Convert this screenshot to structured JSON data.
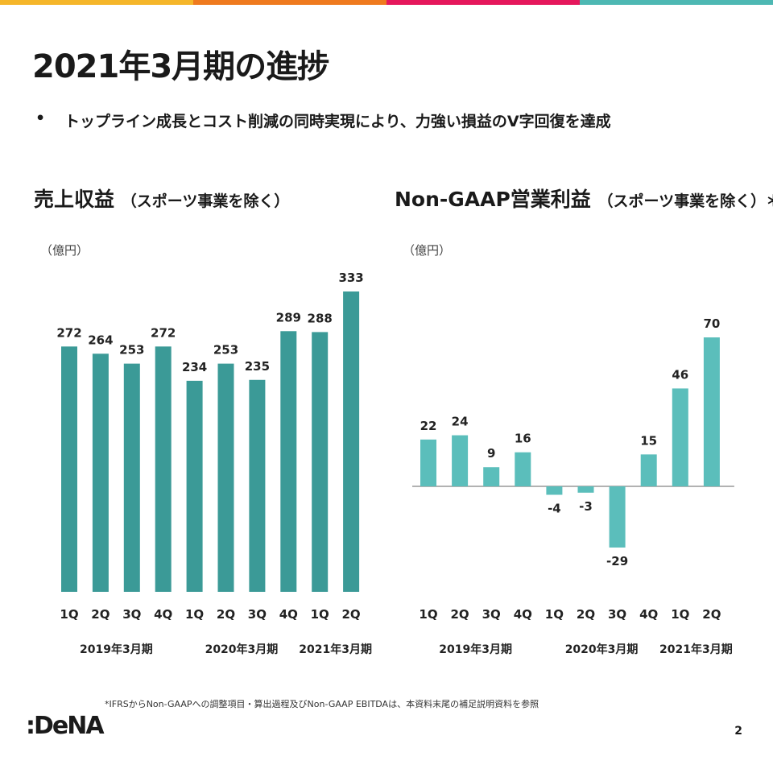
{
  "top_bar_colors": [
    "#F5B62A",
    "#EF7A1E",
    "#E5175C",
    "#4DB8B3"
  ],
  "title": "2021年3月期の進捗",
  "bullet": "トップライン成長とコスト削減の同時実現により、力強い損益のV字回復を達成",
  "bullet_marker": "•",
  "left_chart": {
    "title": "売上収益",
    "subtitle": "（スポーツ事業を除く）",
    "unit": "（億円）"
  },
  "right_chart": {
    "title": "Non-GAAP営業利益",
    "subtitle": "（スポーツ事業を除く）＊",
    "unit": "（億円）"
  },
  "chart_data": [
    {
      "type": "bar",
      "title": "売上収益（スポーツ事業を除く）",
      "unit": "（億円）",
      "categories": [
        "1Q",
        "2Q",
        "3Q",
        "4Q",
        "1Q",
        "2Q",
        "3Q",
        "4Q",
        "1Q",
        "2Q"
      ],
      "values": [
        272,
        264,
        253,
        272,
        234,
        253,
        235,
        289,
        288,
        333
      ],
      "value_labels": [
        "272",
        "264",
        "253",
        "272",
        "234",
        "253",
        "235",
        "289",
        "288",
        "333"
      ],
      "groups": [
        {
          "label": "2019年3月期",
          "count": 4
        },
        {
          "label": "2020年3月期",
          "count": 4
        },
        {
          "label": "2021年3月期",
          "count": 2
        }
      ],
      "ylim": [
        0,
        333
      ],
      "color": "#3B9A97",
      "grid": false
    },
    {
      "type": "bar",
      "title": "Non-GAAP営業利益（スポーツ事業を除く）＊",
      "unit": "（億円）",
      "categories": [
        "1Q",
        "2Q",
        "3Q",
        "4Q",
        "1Q",
        "2Q",
        "3Q",
        "4Q",
        "1Q",
        "2Q"
      ],
      "values": [
        22,
        24,
        9,
        16,
        -4,
        -3,
        -29,
        15,
        46,
        70
      ],
      "value_labels": [
        "22",
        "24",
        "9",
        "16",
        "-4",
        "-3",
        "-29",
        "15",
        "46",
        "70"
      ],
      "groups": [
        {
          "label": "2019年3月期",
          "count": 4
        },
        {
          "label": "2020年3月期",
          "count": 4
        },
        {
          "label": "2021年3月期",
          "count": 2
        }
      ],
      "ylim": [
        -29,
        70
      ],
      "color": "#5BBEBB",
      "grid": false
    }
  ],
  "footnote": "*IFRSからNon-GAAPへの調整項目・算出過程及びNon-GAAP EBITDAは、本資料末尾の補足説明資料を参照",
  "logo": ":DeNA",
  "page_number": "2"
}
